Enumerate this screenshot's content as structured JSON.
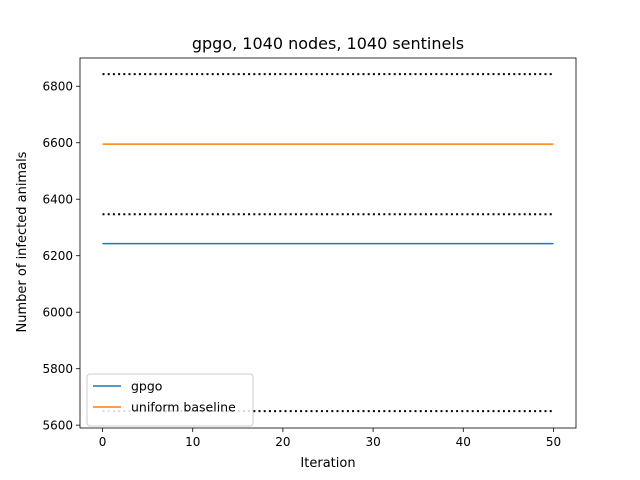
{
  "chart_data": {
    "type": "line",
    "title": "gpgo, 1040 nodes, 1040 sentinels",
    "xlabel": "Iteration",
    "ylabel": "Number of infected animals",
    "xlim": [
      -2.5,
      52.5
    ],
    "ylim": [
      5590,
      6900
    ],
    "xticks": [
      0,
      10,
      20,
      30,
      40,
      50
    ],
    "yticks": [
      5600,
      5800,
      6000,
      6200,
      6400,
      6600,
      6800
    ],
    "x": [
      0,
      50
    ],
    "series": [
      {
        "name": "gpgo",
        "values": [
          6243,
          6243
        ],
        "color": "#1f77b4",
        "style": "solid"
      },
      {
        "name": "uniform baseline",
        "values": [
          6595,
          6595
        ],
        "color": "#ff7f0e",
        "style": "solid"
      },
      {
        "values": [
          6843,
          6843
        ],
        "color": "#000000",
        "style": "dotted"
      },
      {
        "values": [
          6347,
          6347
        ],
        "color": "#000000",
        "style": "dotted"
      },
      {
        "values": [
          5650,
          5650
        ],
        "color": "#000000",
        "style": "dotted"
      }
    ],
    "legend": {
      "placement": "lower-left",
      "entries": [
        "gpgo",
        "uniform baseline"
      ]
    },
    "grid": false
  }
}
